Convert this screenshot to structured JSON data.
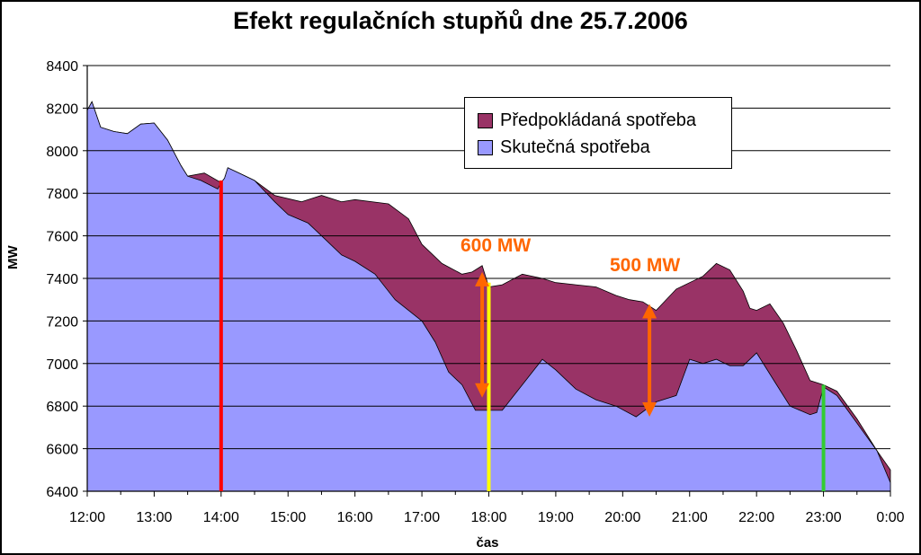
{
  "chart_data": {
    "type": "area",
    "title": "Efekt regulačních stupňů dne 25.7.2006",
    "xlabel": "čas",
    "ylabel": "MW",
    "x_ticks": [
      "12:00",
      "13:00",
      "14:00",
      "15:00",
      "16:00",
      "17:00",
      "18:00",
      "19:00",
      "20:00",
      "21:00",
      "22:00",
      "23:00",
      "0:00"
    ],
    "y_ticks": [
      6400,
      6600,
      6800,
      7000,
      7200,
      7400,
      7600,
      7800,
      8000,
      8200,
      8400
    ],
    "ylim": [
      6400,
      8400
    ],
    "xlim_hours": [
      12,
      24
    ],
    "grid": true,
    "legend_position": "top-right",
    "series": [
      {
        "name": "Předpokládaná spotřeba",
        "color": "#993366",
        "x": [
          12.0,
          12.07,
          12.2,
          12.4,
          12.6,
          12.8,
          13.0,
          13.2,
          13.4,
          13.5,
          13.75,
          14.0,
          14.05,
          14.1,
          14.3,
          14.5,
          14.8,
          15.2,
          15.5,
          15.8,
          16.0,
          16.5,
          16.8,
          17.0,
          17.3,
          17.6,
          17.75,
          17.9,
          18.0,
          18.2,
          18.5,
          18.8,
          19.0,
          19.3,
          19.6,
          19.9,
          20.1,
          20.3,
          20.5,
          20.8,
          21.0,
          21.2,
          21.4,
          21.6,
          21.8,
          21.9,
          22.0,
          22.2,
          22.4,
          22.6,
          22.8,
          23.0,
          23.2,
          23.5,
          23.8,
          24.0
        ],
        "values": [
          8190,
          8230,
          8110,
          8090,
          8080,
          8125,
          8130,
          8050,
          7930,
          7880,
          7895,
          7850,
          7870,
          7920,
          7890,
          7860,
          7790,
          7760,
          7790,
          7760,
          7770,
          7750,
          7680,
          7560,
          7470,
          7420,
          7430,
          7460,
          7360,
          7370,
          7420,
          7400,
          7380,
          7370,
          7360,
          7320,
          7300,
          7290,
          7250,
          7350,
          7380,
          7410,
          7470,
          7440,
          7340,
          7260,
          7250,
          7280,
          7190,
          7060,
          6920,
          6900,
          6870,
          6740,
          6590,
          6500
        ]
      },
      {
        "name": "Skutečná spotřeba",
        "color": "#9999ff",
        "x": [
          12.0,
          12.07,
          12.2,
          12.4,
          12.6,
          12.8,
          13.0,
          13.2,
          13.4,
          13.5,
          13.7,
          13.95,
          14.0,
          14.05,
          14.1,
          14.3,
          14.5,
          14.8,
          15.0,
          15.3,
          15.5,
          15.8,
          16.0,
          16.3,
          16.6,
          16.8,
          17.0,
          17.2,
          17.4,
          17.6,
          17.8,
          18.0,
          18.2,
          18.5,
          18.8,
          19.0,
          19.3,
          19.6,
          19.9,
          20.2,
          20.5,
          20.8,
          21.0,
          21.2,
          21.4,
          21.6,
          21.8,
          22.0,
          22.3,
          22.5,
          22.8,
          22.9,
          23.0,
          23.2,
          23.5,
          23.8,
          24.0
        ],
        "values": [
          8190,
          8230,
          8110,
          8090,
          8080,
          8125,
          8130,
          8050,
          7930,
          7880,
          7860,
          7820,
          7850,
          7870,
          7920,
          7890,
          7860,
          7760,
          7700,
          7660,
          7600,
          7510,
          7480,
          7420,
          7300,
          7250,
          7200,
          7100,
          6960,
          6900,
          6780,
          6780,
          6780,
          6900,
          7020,
          6970,
          6880,
          6830,
          6800,
          6750,
          6820,
          6850,
          7020,
          7000,
          7020,
          6990,
          6990,
          7050,
          6900,
          6800,
          6760,
          6770,
          6890,
          6850,
          6720,
          6590,
          6440
        ]
      }
    ],
    "markers": [
      {
        "time": 14.0,
        "top": 7860,
        "color": "#ff0000"
      },
      {
        "time": 18.0,
        "top": 7380,
        "color": "#ffff00"
      },
      {
        "time": 23.0,
        "top": 6900,
        "color": "#33cc33"
      }
    ],
    "arrows": [
      {
        "time": 17.9,
        "from": 6840,
        "to": 7430,
        "color": "#ff6600"
      },
      {
        "time": 20.4,
        "from": 6750,
        "to": 7280,
        "color": "#ff6600"
      }
    ],
    "annotations": [
      "600 MW",
      "500 MW"
    ]
  }
}
